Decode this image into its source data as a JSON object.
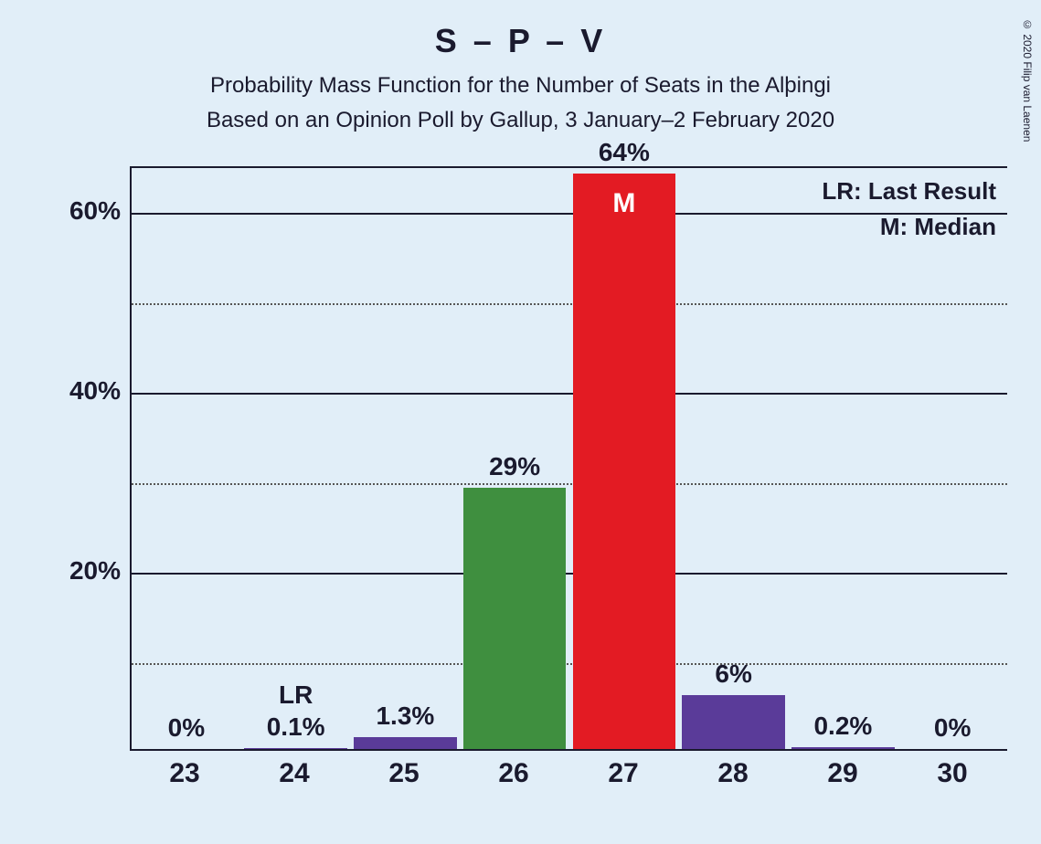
{
  "copyright": "© 2020 Filip van Laenen",
  "title": "S – P – V",
  "subtitle1": "Probability Mass Function for the Number of Seats in the Alþingi",
  "subtitle2": "Based on an Opinion Poll by Gallup, 3 January–2 February 2020",
  "legend": {
    "lr": "LR: Last Result",
    "m": "M: Median"
  },
  "chart": {
    "type": "bar",
    "background_color": "#e1eef8",
    "axis_color": "#1a1a2e",
    "grid_minor_color": "#555555",
    "font_color": "#1a1a2e",
    "ymax": 65,
    "y_major_ticks": [
      20,
      40,
      60
    ],
    "y_minor_ticks": [
      10,
      30,
      50
    ],
    "y_major_labels": [
      "20%",
      "40%",
      "60%"
    ],
    "categories": [
      "23",
      "24",
      "25",
      "26",
      "27",
      "28",
      "29",
      "30"
    ],
    "bars": [
      {
        "value": 0,
        "label": "0%",
        "lr": false,
        "median": false,
        "color": "#5a3b99"
      },
      {
        "value": 0.1,
        "label": "0.1%",
        "lr": true,
        "median": false,
        "color": "#5a3b99"
      },
      {
        "value": 1.3,
        "label": "1.3%",
        "lr": false,
        "median": false,
        "color": "#5a3b99"
      },
      {
        "value": 29,
        "label": "29%",
        "lr": false,
        "median": false,
        "color": "#3f8f3f"
      },
      {
        "value": 64,
        "label": "64%",
        "lr": false,
        "median": true,
        "color": "#e31b23"
      },
      {
        "value": 6,
        "label": "6%",
        "lr": false,
        "median": false,
        "color": "#5a3b99"
      },
      {
        "value": 0.2,
        "label": "0.2%",
        "lr": false,
        "median": false,
        "color": "#5a3b99"
      },
      {
        "value": 0,
        "label": "0%",
        "lr": false,
        "median": false,
        "color": "#5a3b99"
      }
    ],
    "median_glyph": "M",
    "lr_glyph": "LR",
    "title_fontsize": 36,
    "subtitle_fontsize": 24,
    "axis_label_fontsize": 28,
    "bar_label_fontsize": 28
  }
}
